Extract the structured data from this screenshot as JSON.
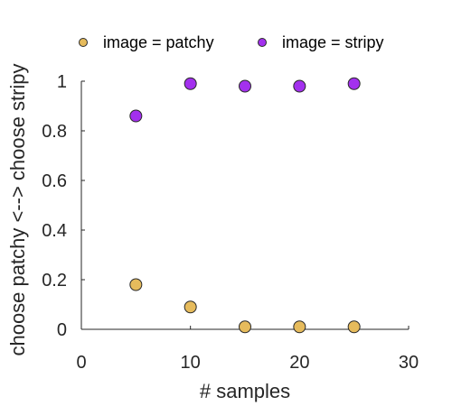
{
  "chart_data": {
    "type": "scatter",
    "title": "",
    "xlabel": "# samples",
    "ylabel": "choose patchy <--> choose stripy",
    "xlim": [
      0,
      30
    ],
    "ylim": [
      0,
      1
    ],
    "x_ticks": [
      0,
      10,
      20,
      30
    ],
    "x_tick_labels": [
      "0",
      "10",
      "20",
      "30"
    ],
    "y_ticks": [
      0,
      0.2,
      0.4,
      0.6,
      0.8,
      1
    ],
    "y_tick_labels": [
      "0",
      "0.2",
      "0.4",
      "0.6",
      "0.8",
      "1"
    ],
    "grid": false,
    "legend_position": "top",
    "series": [
      {
        "name": "image = patchy",
        "color": "#e6bb5c",
        "points": [
          {
            "x": 5,
            "y": 0.18
          },
          {
            "x": 10,
            "y": 0.09
          },
          {
            "x": 15,
            "y": 0.01
          },
          {
            "x": 20,
            "y": 0.01
          },
          {
            "x": 25,
            "y": 0.01
          }
        ]
      },
      {
        "name": "image = stripy",
        "color": "#a330ee",
        "points": [
          {
            "x": 5,
            "y": 0.86
          },
          {
            "x": 10,
            "y": 0.99
          },
          {
            "x": 15,
            "y": 0.98
          },
          {
            "x": 20,
            "y": 0.98
          },
          {
            "x": 25,
            "y": 0.99
          }
        ]
      }
    ]
  }
}
